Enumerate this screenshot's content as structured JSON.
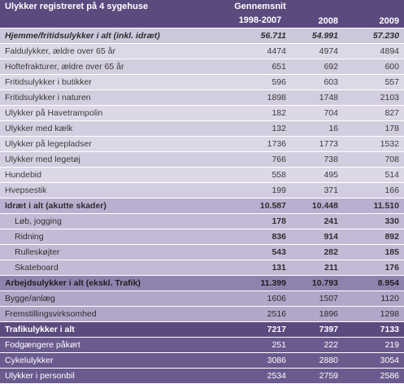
{
  "header": {
    "title": "Ulykker registreret på 4 sygehuse",
    "col1_line1": "Gennemsnit",
    "col1_line2": "1998-2007",
    "col2": "2008",
    "col3": "2009"
  },
  "sections": [
    {
      "label": "Hjemme/fritidsulykker i alt (inkl. idræt)",
      "values": [
        "56.711",
        "54.991",
        "57.230"
      ],
      "items": [
        {
          "label": "Faldulykker, ældre over 65 år",
          "values": [
            "4474",
            "4974",
            "4894"
          ]
        },
        {
          "label": "Hoftefrakturer, ældre over 65 år",
          "values": [
            "651",
            "692",
            "600"
          ]
        },
        {
          "label": "Fritidsulykker i butikker",
          "values": [
            "596",
            "603",
            "557"
          ]
        },
        {
          "label": "Fritidsulykker i naturen",
          "values": [
            "1898",
            "1748",
            "2103"
          ]
        },
        {
          "label": "Ulykker på Havetrampolin",
          "values": [
            "182",
            "704",
            "827"
          ]
        },
        {
          "label": "Ulykker med kælk",
          "values": [
            "132",
            "16",
            "178"
          ]
        },
        {
          "label": "Ulykker på legepladser",
          "values": [
            "1736",
            "1773",
            "1532"
          ]
        },
        {
          "label": "Ulykker med legetøj",
          "values": [
            "766",
            "738",
            "708"
          ]
        },
        {
          "label": "Hundebid",
          "values": [
            "558",
            "495",
            "514"
          ]
        },
        {
          "label": "Hvepsestik",
          "values": [
            "199",
            "371",
            "166"
          ]
        }
      ]
    },
    {
      "label": "Idræt i alt (akutte skader)",
      "values": [
        "10.587",
        "10.448",
        "11.510"
      ],
      "items": [
        {
          "label": "Løb, jogging",
          "values": [
            "178",
            "241",
            "330"
          ]
        },
        {
          "label": "Ridning",
          "values": [
            "836",
            "914",
            "892"
          ]
        },
        {
          "label": "Rulleskøjter",
          "values": [
            "543",
            "282",
            "185"
          ]
        },
        {
          "label": "Skateboard",
          "values": [
            "131",
            "211",
            "176"
          ]
        }
      ]
    },
    {
      "label": "Arbejdsulykker i alt (ekskl. Trafik)",
      "values": [
        "11.399",
        "10.793",
        "8.954"
      ],
      "items": [
        {
          "label": "Bygge/anlæg",
          "values": [
            "1606",
            "1507",
            "1120"
          ]
        },
        {
          "label": "Fremstillingsvirksomhed",
          "values": [
            "2516",
            "1896",
            "1298"
          ]
        }
      ]
    },
    {
      "label": "Trafikulykker i alt",
      "values": [
        "7217",
        "7397",
        "7133"
      ],
      "items": [
        {
          "label": "Fodgængere påkørt",
          "values": [
            "251",
            "222",
            "219"
          ]
        },
        {
          "label": "Cykelulykker",
          "values": [
            "3086",
            "2880",
            "3054"
          ]
        },
        {
          "label": "Ulykker i personbil",
          "values": [
            "2534",
            "2759",
            "2586"
          ]
        }
      ]
    }
  ]
}
